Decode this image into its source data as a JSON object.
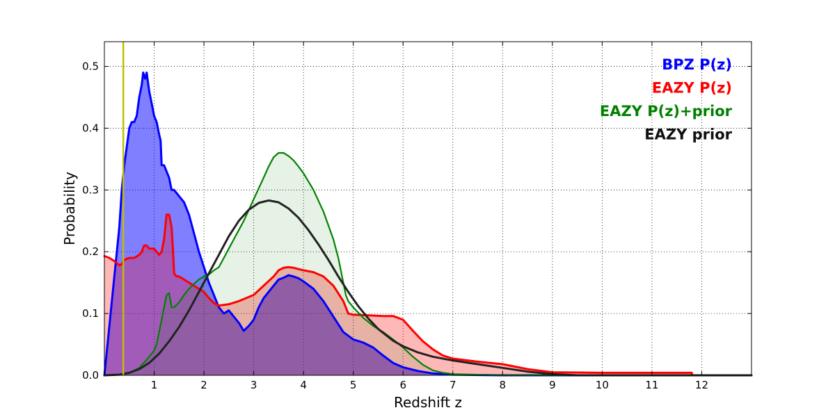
{
  "chart_data": {
    "type": "area",
    "title": "",
    "xlabel": "Redshift z",
    "ylabel": "Probability",
    "xlim": [
      0,
      13
    ],
    "ylim": [
      0,
      0.54
    ],
    "xticks": [
      1,
      2,
      3,
      4,
      5,
      6,
      7,
      8,
      9,
      10,
      11,
      12
    ],
    "xtick_labels": [
      "1",
      "2",
      "3",
      "4",
      "5",
      "6",
      "7",
      "8",
      "9",
      "10",
      "11",
      "12"
    ],
    "yticks": [
      0,
      0.1,
      0.2,
      0.3,
      0.4,
      0.5
    ],
    "ytick_labels": [
      "0.0",
      "0.1",
      "0.2",
      "0.3",
      "0.4",
      "0.5"
    ],
    "grid": true,
    "legend_position": "top-right",
    "vline": {
      "x": 0.38,
      "color": "#bfbf00"
    },
    "series": [
      {
        "name": "BPZ P(z)",
        "color": "#0000ff",
        "fill_color": "#0000ff",
        "fill_opacity": 0.5,
        "points": [
          [
            0,
            0
          ],
          [
            0.1,
            0.08
          ],
          [
            0.2,
            0.16
          ],
          [
            0.3,
            0.24
          ],
          [
            0.35,
            0.3
          ],
          [
            0.4,
            0.34
          ],
          [
            0.45,
            0.37
          ],
          [
            0.5,
            0.4
          ],
          [
            0.55,
            0.41
          ],
          [
            0.6,
            0.41
          ],
          [
            0.65,
            0.42
          ],
          [
            0.7,
            0.45
          ],
          [
            0.75,
            0.47
          ],
          [
            0.78,
            0.49
          ],
          [
            0.82,
            0.48
          ],
          [
            0.85,
            0.49
          ],
          [
            0.9,
            0.46
          ],
          [
            0.95,
            0.44
          ],
          [
            1.0,
            0.42
          ],
          [
            1.05,
            0.41
          ],
          [
            1.1,
            0.39
          ],
          [
            1.13,
            0.38
          ],
          [
            1.15,
            0.34
          ],
          [
            1.2,
            0.34
          ],
          [
            1.25,
            0.33
          ],
          [
            1.3,
            0.32
          ],
          [
            1.35,
            0.3
          ],
          [
            1.4,
            0.3
          ],
          [
            1.5,
            0.29
          ],
          [
            1.6,
            0.28
          ],
          [
            1.7,
            0.26
          ],
          [
            1.8,
            0.23
          ],
          [
            1.9,
            0.2
          ],
          [
            2.0,
            0.175
          ],
          [
            2.1,
            0.15
          ],
          [
            2.2,
            0.13
          ],
          [
            2.3,
            0.11
          ],
          [
            2.4,
            0.1
          ],
          [
            2.5,
            0.105
          ],
          [
            2.6,
            0.095
          ],
          [
            2.7,
            0.085
          ],
          [
            2.8,
            0.072
          ],
          [
            2.9,
            0.08
          ],
          [
            3.0,
            0.09
          ],
          [
            3.1,
            0.11
          ],
          [
            3.2,
            0.125
          ],
          [
            3.3,
            0.135
          ],
          [
            3.4,
            0.145
          ],
          [
            3.5,
            0.155
          ],
          [
            3.6,
            0.158
          ],
          [
            3.7,
            0.162
          ],
          [
            3.8,
            0.16
          ],
          [
            3.9,
            0.157
          ],
          [
            4.0,
            0.152
          ],
          [
            4.2,
            0.14
          ],
          [
            4.4,
            0.12
          ],
          [
            4.6,
            0.095
          ],
          [
            4.8,
            0.07
          ],
          [
            5.0,
            0.058
          ],
          [
            5.2,
            0.053
          ],
          [
            5.4,
            0.045
          ],
          [
            5.6,
            0.032
          ],
          [
            5.8,
            0.02
          ],
          [
            6.0,
            0.013
          ],
          [
            6.3,
            0.007
          ],
          [
            6.6,
            0.003
          ],
          [
            7.0,
            0.001
          ],
          [
            8,
            0
          ],
          [
            13,
            0
          ]
        ]
      },
      {
        "name": "EAZY P(z)",
        "color": "#ff0000",
        "fill_color": "#ff0000",
        "fill_opacity": 0.28,
        "points": [
          [
            0,
            0.193
          ],
          [
            0.1,
            0.19
          ],
          [
            0.2,
            0.185
          ],
          [
            0.3,
            0.178
          ],
          [
            0.35,
            0.18
          ],
          [
            0.4,
            0.187
          ],
          [
            0.5,
            0.19
          ],
          [
            0.6,
            0.19
          ],
          [
            0.7,
            0.195
          ],
          [
            0.75,
            0.2
          ],
          [
            0.8,
            0.21
          ],
          [
            0.85,
            0.21
          ],
          [
            0.9,
            0.205
          ],
          [
            1.0,
            0.205
          ],
          [
            1.05,
            0.2
          ],
          [
            1.1,
            0.195
          ],
          [
            1.15,
            0.2
          ],
          [
            1.2,
            0.22
          ],
          [
            1.25,
            0.26
          ],
          [
            1.3,
            0.26
          ],
          [
            1.35,
            0.24
          ],
          [
            1.38,
            0.2
          ],
          [
            1.4,
            0.165
          ],
          [
            1.45,
            0.16
          ],
          [
            1.5,
            0.16
          ],
          [
            1.6,
            0.155
          ],
          [
            1.7,
            0.15
          ],
          [
            1.8,
            0.145
          ],
          [
            1.9,
            0.14
          ],
          [
            2.0,
            0.135
          ],
          [
            2.1,
            0.125
          ],
          [
            2.2,
            0.117
          ],
          [
            2.3,
            0.113
          ],
          [
            2.5,
            0.115
          ],
          [
            2.7,
            0.12
          ],
          [
            3.0,
            0.13
          ],
          [
            3.2,
            0.145
          ],
          [
            3.4,
            0.16
          ],
          [
            3.5,
            0.17
          ],
          [
            3.6,
            0.174
          ],
          [
            3.7,
            0.175
          ],
          [
            3.8,
            0.174
          ],
          [
            4.0,
            0.17
          ],
          [
            4.2,
            0.167
          ],
          [
            4.4,
            0.16
          ],
          [
            4.6,
            0.145
          ],
          [
            4.8,
            0.12
          ],
          [
            4.9,
            0.1
          ],
          [
            5.0,
            0.098
          ],
          [
            5.3,
            0.097
          ],
          [
            5.6,
            0.096
          ],
          [
            5.8,
            0.096
          ],
          [
            6.0,
            0.09
          ],
          [
            6.2,
            0.072
          ],
          [
            6.4,
            0.055
          ],
          [
            6.6,
            0.042
          ],
          [
            6.8,
            0.032
          ],
          [
            7.0,
            0.027
          ],
          [
            7.5,
            0.022
          ],
          [
            8.0,
            0.018
          ],
          [
            8.5,
            0.01
          ],
          [
            9.0,
            0.005
          ],
          [
            10,
            0.004
          ],
          [
            11,
            0.004
          ],
          [
            11.8,
            0.004
          ],
          [
            11.81,
            0
          ]
        ]
      },
      {
        "name": "EAZY P(z)+prior",
        "color": "#008000",
        "fill_color": "#008000",
        "fill_opacity": 0.1,
        "points": [
          [
            0,
            0
          ],
          [
            0.3,
            0.001
          ],
          [
            0.5,
            0.004
          ],
          [
            0.7,
            0.012
          ],
          [
            0.85,
            0.025
          ],
          [
            1.0,
            0.04
          ],
          [
            1.05,
            0.05
          ],
          [
            1.1,
            0.07
          ],
          [
            1.15,
            0.09
          ],
          [
            1.2,
            0.11
          ],
          [
            1.25,
            0.13
          ],
          [
            1.3,
            0.133
          ],
          [
            1.35,
            0.11
          ],
          [
            1.4,
            0.11
          ],
          [
            1.5,
            0.118
          ],
          [
            1.6,
            0.13
          ],
          [
            1.7,
            0.14
          ],
          [
            1.8,
            0.148
          ],
          [
            1.9,
            0.155
          ],
          [
            2.0,
            0.16
          ],
          [
            2.1,
            0.163
          ],
          [
            2.2,
            0.17
          ],
          [
            2.3,
            0.175
          ],
          [
            2.4,
            0.19
          ],
          [
            2.5,
            0.205
          ],
          [
            2.6,
            0.22
          ],
          [
            2.8,
            0.25
          ],
          [
            3.0,
            0.285
          ],
          [
            3.2,
            0.32
          ],
          [
            3.3,
            0.338
          ],
          [
            3.4,
            0.353
          ],
          [
            3.5,
            0.36
          ],
          [
            3.6,
            0.36
          ],
          [
            3.7,
            0.355
          ],
          [
            3.8,
            0.348
          ],
          [
            3.9,
            0.338
          ],
          [
            4.0,
            0.327
          ],
          [
            4.2,
            0.3
          ],
          [
            4.4,
            0.265
          ],
          [
            4.6,
            0.22
          ],
          [
            4.7,
            0.19
          ],
          [
            4.8,
            0.15
          ],
          [
            4.85,
            0.13
          ],
          [
            4.9,
            0.12
          ],
          [
            5.0,
            0.11
          ],
          [
            5.2,
            0.093
          ],
          [
            5.4,
            0.08
          ],
          [
            5.6,
            0.07
          ],
          [
            5.8,
            0.058
          ],
          [
            6.0,
            0.045
          ],
          [
            6.2,
            0.03
          ],
          [
            6.4,
            0.017
          ],
          [
            6.6,
            0.008
          ],
          [
            6.8,
            0.004
          ],
          [
            7.0,
            0.002
          ],
          [
            7.5,
            0.001
          ],
          [
            8,
            0
          ],
          [
            13,
            0
          ]
        ]
      },
      {
        "name": "EAZY prior",
        "color": "#222222",
        "fill_color": "none",
        "fill_opacity": 0,
        "points": [
          [
            0,
            0
          ],
          [
            0.3,
            0.001
          ],
          [
            0.5,
            0.004
          ],
          [
            0.7,
            0.01
          ],
          [
            0.9,
            0.02
          ],
          [
            1.1,
            0.035
          ],
          [
            1.3,
            0.055
          ],
          [
            1.5,
            0.078
          ],
          [
            1.7,
            0.105
          ],
          [
            1.9,
            0.135
          ],
          [
            2.1,
            0.165
          ],
          [
            2.3,
            0.195
          ],
          [
            2.5,
            0.225
          ],
          [
            2.7,
            0.25
          ],
          [
            2.9,
            0.268
          ],
          [
            3.1,
            0.279
          ],
          [
            3.3,
            0.283
          ],
          [
            3.5,
            0.28
          ],
          [
            3.7,
            0.27
          ],
          [
            3.9,
            0.255
          ],
          [
            4.1,
            0.235
          ],
          [
            4.3,
            0.212
          ],
          [
            4.5,
            0.187
          ],
          [
            4.7,
            0.16
          ],
          [
            4.9,
            0.135
          ],
          [
            5.1,
            0.112
          ],
          [
            5.3,
            0.092
          ],
          [
            5.5,
            0.075
          ],
          [
            5.8,
            0.056
          ],
          [
            6.0,
            0.047
          ],
          [
            6.3,
            0.037
          ],
          [
            6.6,
            0.03
          ],
          [
            7.0,
            0.024
          ],
          [
            7.5,
            0.018
          ],
          [
            8.0,
            0.012
          ],
          [
            8.5,
            0.006
          ],
          [
            9.0,
            0.002
          ],
          [
            9.5,
            0
          ],
          [
            13,
            0
          ]
        ]
      }
    ],
    "legend": [
      {
        "label": "BPZ P(z)",
        "color": "#0000ff"
      },
      {
        "label": "EAZY P(z)",
        "color": "#ff0000"
      },
      {
        "label": "EAZY P(z)+prior",
        "color": "#008000"
      },
      {
        "label": "EAZY prior",
        "color": "#111111"
      }
    ]
  }
}
